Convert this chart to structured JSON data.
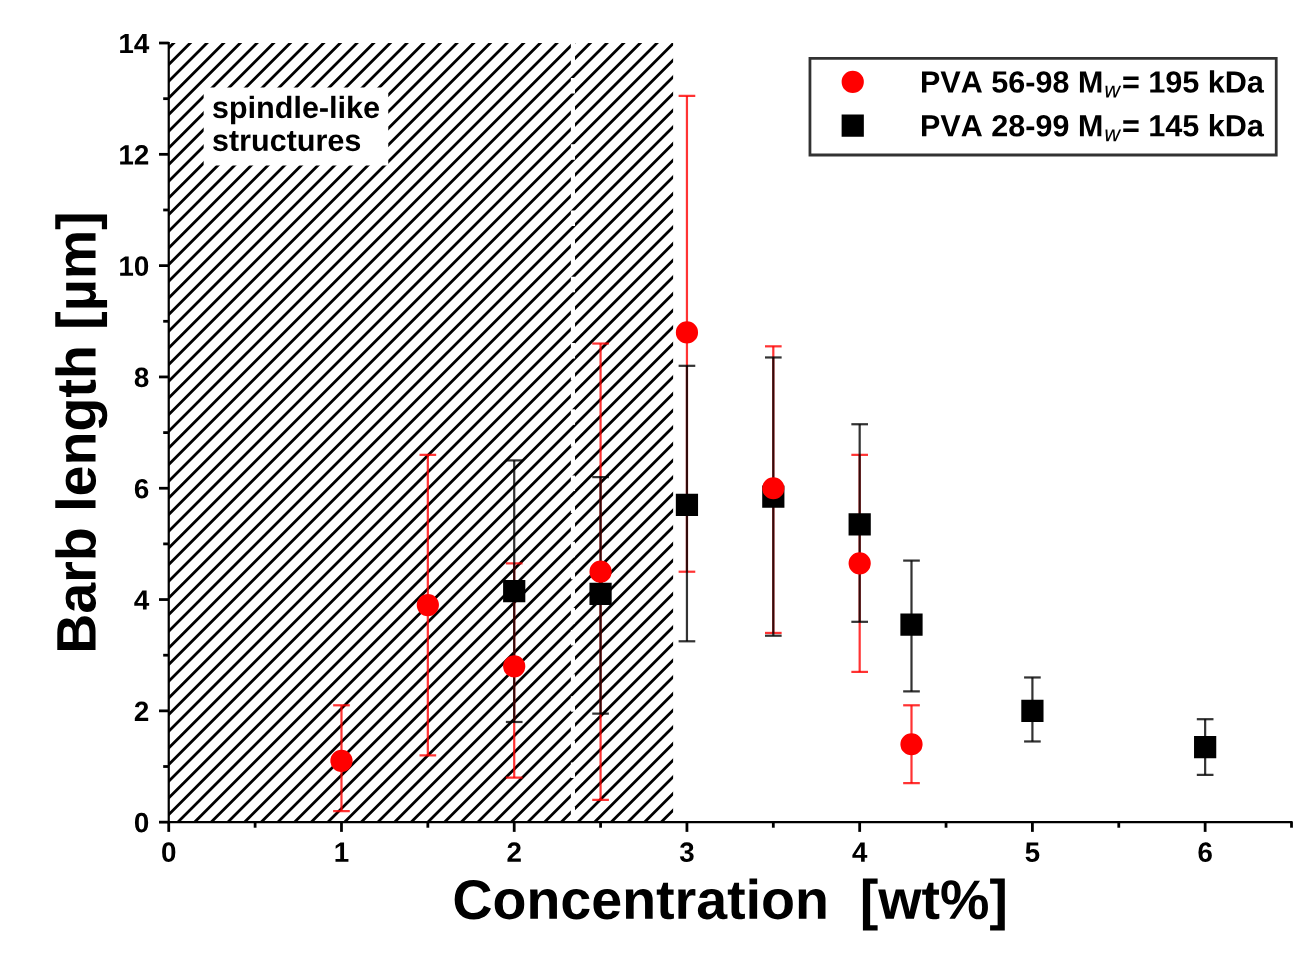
{
  "chart_data": {
    "type": "scatter",
    "xlabel": "Concentration  [wt%]",
    "ylabel": "Barb length [µm]",
    "xlim": [
      0,
      6.5
    ],
    "xticks": [
      0,
      1,
      2,
      3,
      4,
      5,
      6
    ],
    "ylim": [
      0,
      14
    ],
    "yticks": [
      0,
      2,
      4,
      6,
      8,
      10,
      12,
      14
    ],
    "grid": false,
    "legend": "top right",
    "bands": [
      {
        "axis": "x",
        "from": 0,
        "to": 2.92,
        "label": "spindle-like\nstructures"
      }
    ],
    "ref_lines": [
      {
        "axis": "x",
        "value": 2.34,
        "line_style": "dashed",
        "color": "#ffffff"
      }
    ],
    "series": [
      {
        "name": "PVA 56-98 M$_{w}$= 195 kDa",
        "color": "#ff0000",
        "marker": "circle",
        "x": [
          1,
          1.5,
          2,
          2.5,
          3,
          3.5,
          4,
          4.3
        ],
        "values": [
          1.1,
          3.9,
          2.8,
          4.5,
          8.8,
          6.0,
          4.65,
          1.4
        ],
        "errors": [
          [
            0.2,
            2.1
          ],
          [
            1.2,
            6.6
          ],
          [
            0.8,
            4.65
          ],
          [
            0.4,
            8.6
          ],
          [
            4.5,
            13.05
          ],
          [
            3.4,
            8.55
          ],
          [
            2.7,
            6.6
          ],
          [
            0.7,
            2.1
          ]
        ]
      },
      {
        "name": "PVA 28-99 M$_{w}$= 145 kDa",
        "color": "#000000",
        "marker": "square",
        "x": [
          2,
          2.5,
          3,
          3.5,
          4,
          4.3,
          5,
          6
        ],
        "values": [
          4.15,
          4.1,
          5.7,
          5.85,
          5.35,
          3.55,
          2.0,
          1.35
        ],
        "errors": [
          [
            1.8,
            6.5
          ],
          [
            1.95,
            6.2
          ],
          [
            3.25,
            8.2
          ],
          [
            3.35,
            8.35
          ],
          [
            3.6,
            7.15
          ],
          [
            2.35,
            4.7
          ],
          [
            1.45,
            2.6
          ],
          [
            0.85,
            1.85
          ]
        ]
      }
    ]
  }
}
